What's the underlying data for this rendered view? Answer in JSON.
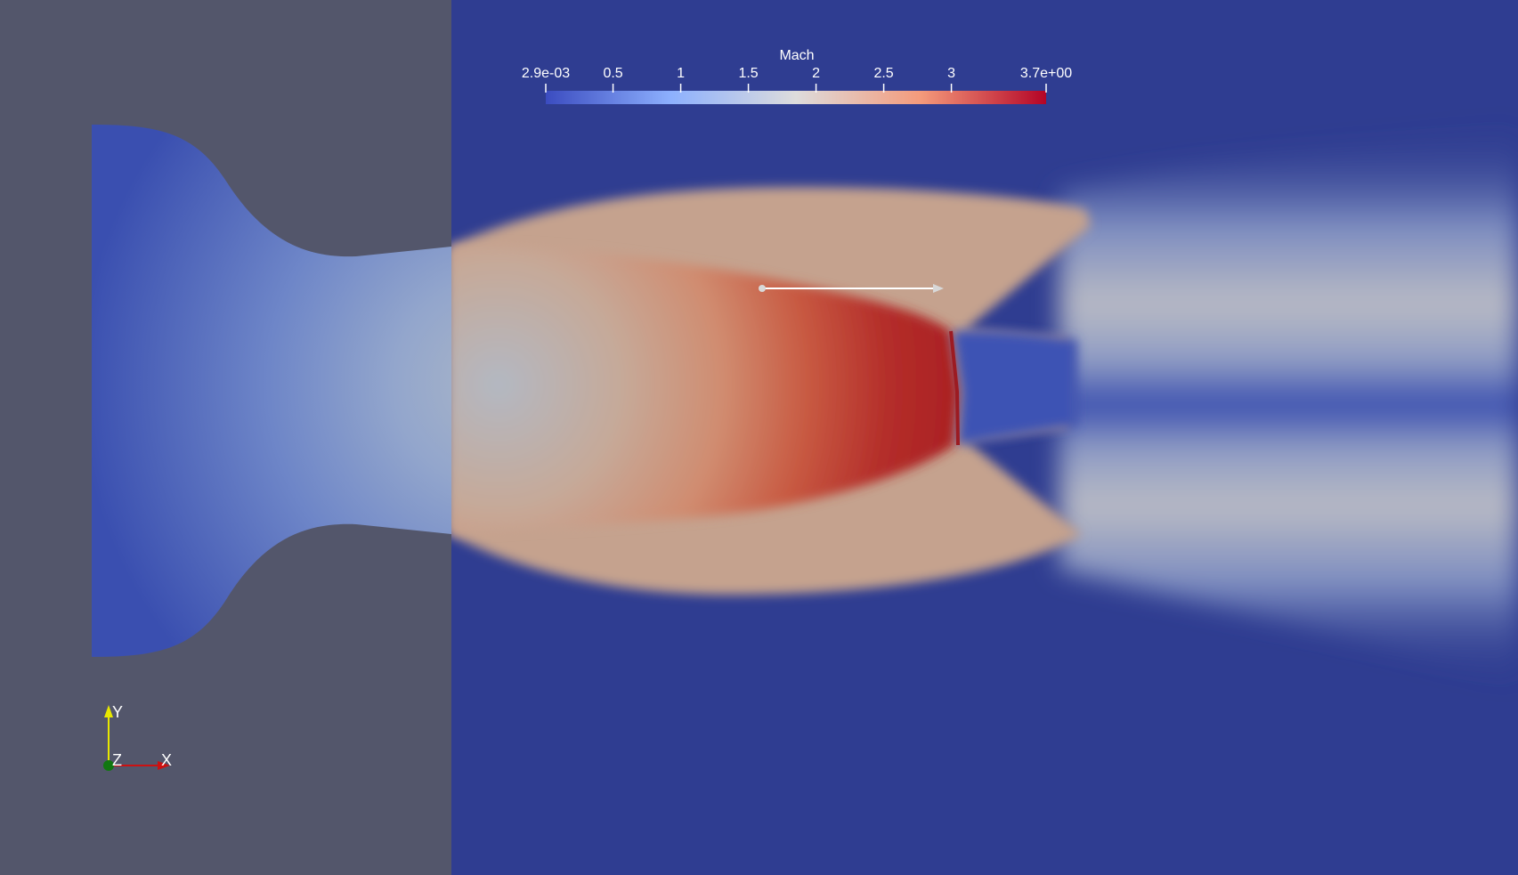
{
  "viewer": {
    "background_color": "#53566b",
    "field_name": "Mach"
  },
  "colorbar": {
    "title": "Mach",
    "min_label": "2.9e-03",
    "max_label": "3.7e+00",
    "ticks": [
      "0.5",
      "1",
      "1.5",
      "2",
      "2.5",
      "3"
    ],
    "range": [
      0.0029,
      3.7
    ],
    "colormap": "Cool to Warm",
    "colors": [
      "#3b4cc0",
      "#8db0fe",
      "#dddcdc",
      "#f49a7b",
      "#b40426"
    ]
  },
  "axes": {
    "x_label": "X",
    "y_label": "Y",
    "z_label": "Z",
    "x_color": "#cc1111",
    "y_color": "#e8e800",
    "z_color": "#117711"
  },
  "widget": {
    "icon": "line-probe-widget"
  }
}
